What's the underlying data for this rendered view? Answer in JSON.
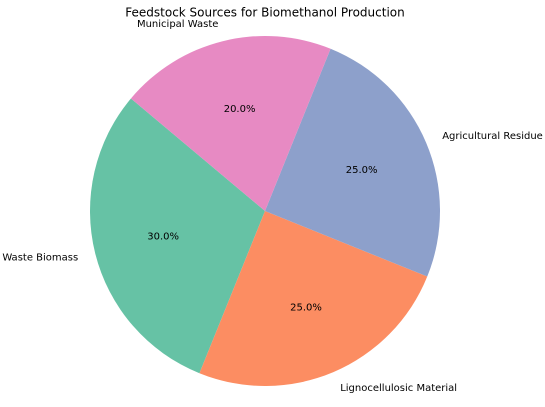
{
  "chart_data": {
    "type": "pie",
    "title": "Feedstock Sources for Biomethanol Production",
    "categories": [
      "Waste Biomass",
      "Lignocellulosic Material",
      "Agricultural Residue",
      "Municipal Waste"
    ],
    "values": [
      30,
      25,
      25,
      20
    ],
    "value_labels": [
      "30.0%",
      "25.0%",
      "25.0%",
      "20.0%"
    ],
    "colors": [
      "#66c2a5",
      "#fc8d62",
      "#8da0cb",
      "#e78ac3"
    ],
    "start_angle": 140
  }
}
